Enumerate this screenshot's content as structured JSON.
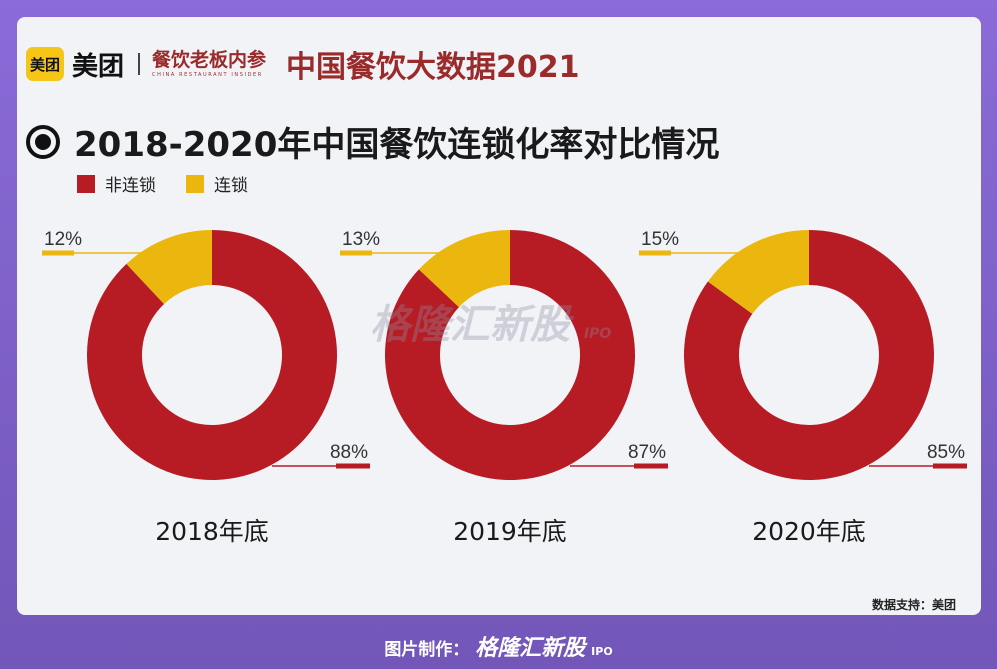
{
  "header": {
    "meituan_badge": "美团",
    "meituan_name": "美团",
    "brand2_cn": "餐饮老板内参",
    "brand2_en": "CHINA RESTAURANT INSIDER",
    "report_title": "中国餐饮大数据2021"
  },
  "chart_title": "2018-2020年中国餐饮连锁化率对比情况",
  "legend": [
    "非连锁",
    "连锁"
  ],
  "colors": {
    "non_chain": "#b71c24",
    "chain": "#ebb70f",
    "background": "#f1f3f7"
  },
  "watermark": {
    "text": "格隆汇新股",
    "ipo": "IPO"
  },
  "footer_note": "数据支持：美团",
  "credit": {
    "label": "图片制作：",
    "brand": "格隆汇新股",
    "ipo": "IPO"
  },
  "chart_data": [
    {
      "type": "pie",
      "title": "2018年底",
      "categories": [
        "非连锁",
        "连锁"
      ],
      "values": [
        88,
        12
      ],
      "labels": [
        "88%",
        "12%"
      ]
    },
    {
      "type": "pie",
      "title": "2019年底",
      "categories": [
        "非连锁",
        "连锁"
      ],
      "values": [
        87,
        13
      ],
      "labels": [
        "87%",
        "13%"
      ]
    },
    {
      "type": "pie",
      "title": "2020年底",
      "categories": [
        "非连锁",
        "连锁"
      ],
      "values": [
        85,
        15
      ],
      "labels": [
        "85%",
        "15%"
      ]
    }
  ]
}
